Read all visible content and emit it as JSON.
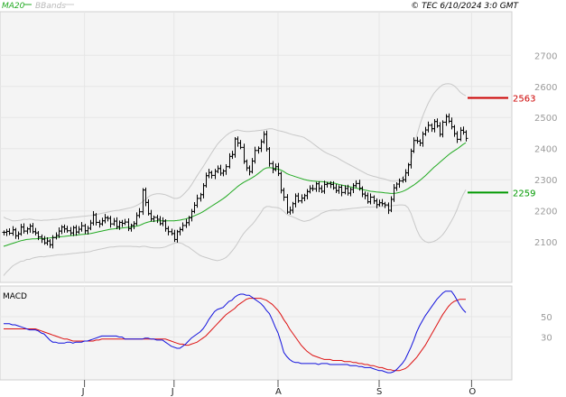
{
  "header": {
    "legend_ma": "MA20",
    "legend_bb": "BBands",
    "copyright": "© TEC 6/10/2024 3:0 GMT"
  },
  "macd_label": "MACD",
  "colors": {
    "ma": "#22aa22",
    "bands": "#c8c8c8",
    "bars": "#000000",
    "macd": "#1111dd",
    "signal": "#dd1111",
    "resistance": "#cc0000",
    "support": "#009900",
    "grid": "#e6e6e6",
    "panel_bg": "#f4f4f4"
  },
  "chart_data": [
    {
      "type": "ohlc",
      "title": "",
      "ylim": [
        1970,
        2840
      ],
      "yticks": [
        2100,
        2200,
        2300,
        2400,
        2500,
        2600,
        2700
      ],
      "x_tick_labels": [
        {
          "label": "J",
          "index": 28
        },
        {
          "label": "J",
          "index": 59
        },
        {
          "label": "A",
          "index": 95
        },
        {
          "label": "S",
          "index": 130
        },
        {
          "label": "O",
          "index": 162
        }
      ],
      "levels": [
        {
          "name": "resistance",
          "value": 2563,
          "label": "2563"
        },
        {
          "name": "support",
          "value": 2259,
          "label": "2259"
        }
      ],
      "close": [
        2131,
        2134,
        2128,
        2139,
        2120,
        2126,
        2148,
        2135,
        2142,
        2151,
        2133,
        2129,
        2116,
        2109,
        2097,
        2103,
        2091,
        2114,
        2121,
        2135,
        2148,
        2142,
        2136,
        2129,
        2146,
        2132,
        2141,
        2152,
        2136,
        2144,
        2161,
        2187,
        2163,
        2158,
        2168,
        2178,
        2176,
        2158,
        2167,
        2149,
        2163,
        2160,
        2164,
        2143,
        2153,
        2159,
        2185,
        2197,
        2267,
        2227,
        2191,
        2174,
        2179,
        2173,
        2159,
        2167,
        2143,
        2133,
        2127,
        2108,
        2133,
        2140,
        2153,
        2162,
        2178,
        2198,
        2218,
        2240,
        2252,
        2281,
        2313,
        2323,
        2314,
        2327,
        2336,
        2321,
        2328,
        2342,
        2375,
        2381,
        2431,
        2418,
        2404,
        2359,
        2338,
        2326,
        2360,
        2394,
        2401,
        2422,
        2446,
        2399,
        2352,
        2333,
        2342,
        2320,
        2266,
        2244,
        2196,
        2202,
        2223,
        2248,
        2232,
        2241,
        2249,
        2262,
        2272,
        2271,
        2287,
        2272,
        2263,
        2285,
        2287,
        2285,
        2274,
        2265,
        2276,
        2259,
        2272,
        2257,
        2269,
        2281,
        2288,
        2273,
        2254,
        2249,
        2229,
        2244,
        2232,
        2220,
        2226,
        2223,
        2219,
        2202,
        2237,
        2274,
        2286,
        2296,
        2300,
        2322,
        2348,
        2392,
        2426,
        2424,
        2418,
        2447,
        2460,
        2475,
        2464,
        2487,
        2473,
        2446,
        2485,
        2503,
        2488,
        2470,
        2448,
        2430,
        2459,
        2453,
        2433
      ],
      "ma20": [
        2086,
        2089,
        2092,
        2095,
        2098,
        2101,
        2104,
        2106,
        2108,
        2109,
        2110,
        2110,
        2111,
        2111,
        2111,
        2112,
        2113,
        2114,
        2115,
        2116,
        2117,
        2118,
        2119,
        2120,
        2121,
        2122,
        2123,
        2124,
        2125,
        2126,
        2127,
        2129,
        2131,
        2133,
        2135,
        2137,
        2139,
        2141,
        2142,
        2143,
        2144,
        2145,
        2146,
        2147,
        2148,
        2149,
        2151,
        2153,
        2157,
        2161,
        2164,
        2166,
        2167,
        2168,
        2168,
        2168,
        2168,
        2168,
        2168,
        2168,
        2169,
        2170,
        2172,
        2174,
        2177,
        2180,
        2184,
        2188,
        2192,
        2197,
        2203,
        2209,
        2215,
        2221,
        2227,
        2233,
        2239,
        2246,
        2254,
        2262,
        2270,
        2278,
        2285,
        2291,
        2296,
        2301,
        2306,
        2312,
        2319,
        2326,
        2334,
        2338,
        2339,
        2338,
        2336,
        2334,
        2331,
        2326,
        2320,
        2316,
        2313,
        2310,
        2307,
        2304,
        2301,
        2299,
        2297,
        2296,
        2295,
        2294,
        2294,
        2293,
        2292,
        2291,
        2290,
        2288,
        2285,
        2283,
        2281,
        2279,
        2277,
        2275,
        2273,
        2271,
        2269,
        2267,
        2265,
        2263,
        2262,
        2261,
        2260,
        2259,
        2258,
        2257,
        2256,
        2256,
        2257,
        2259,
        2262,
        2266,
        2271,
        2277,
        2283,
        2290,
        2297,
        2305,
        2313,
        2322,
        2331,
        2340,
        2348,
        2356,
        2364,
        2372,
        2380,
        2387,
        2393,
        2399,
        2406,
        2413,
        2419
      ],
      "bb_upper": [
        2180,
        2175,
        2172,
        2168,
        2168,
        2169,
        2170,
        2173,
        2172,
        2174,
        2172,
        2170,
        2170,
        2169,
        2170,
        2170,
        2171,
        2172,
        2172,
        2173,
        2175,
        2176,
        2177,
        2178,
        2179,
        2180,
        2181,
        2182,
        2183,
        2184,
        2185,
        2186,
        2188,
        2190,
        2192,
        2194,
        2196,
        2198,
        2200,
        2201,
        2202,
        2204,
        2206,
        2208,
        2210,
        2213,
        2217,
        2222,
        2228,
        2236,
        2244,
        2250,
        2253,
        2255,
        2255,
        2254,
        2252,
        2248,
        2244,
        2240,
        2240,
        2243,
        2250,
        2260,
        2270,
        2283,
        2298,
        2313,
        2327,
        2341,
        2356,
        2371,
        2386,
        2400,
        2414,
        2424,
        2433,
        2442,
        2449,
        2454,
        2458,
        2460,
        2458,
        2456,
        2455,
        2455,
        2456,
        2457,
        2458,
        2459,
        2460,
        2462,
        2464,
        2464,
        2461,
        2458,
        2456,
        2454,
        2451,
        2448,
        2445,
        2443,
        2441,
        2439,
        2436,
        2430,
        2424,
        2417,
        2410,
        2403,
        2396,
        2390,
        2385,
        2381,
        2377,
        2373,
        2368,
        2362,
        2357,
        2352,
        2347,
        2342,
        2337,
        2332,
        2327,
        2322,
        2317,
        2314,
        2311,
        2309,
        2306,
        2304,
        2302,
        2299,
        2296,
        2295,
        2296,
        2299,
        2305,
        2314,
        2332,
        2362,
        2400,
        2440,
        2474,
        2502,
        2525,
        2546,
        2563,
        2578,
        2589,
        2598,
        2605,
        2608,
        2609,
        2607,
        2602,
        2593,
        2582,
        2575,
        2570
      ],
      "bb_lower": [
        1992,
        2003,
        2012,
        2022,
        2028,
        2033,
        2038,
        2039,
        2044,
        2044,
        2048,
        2050,
        2052,
        2053,
        2052,
        2054,
        2055,
        2056,
        2058,
        2059,
        2059,
        2060,
        2061,
        2062,
        2063,
        2064,
        2065,
        2066,
        2067,
        2068,
        2069,
        2072,
        2074,
        2076,
        2078,
        2080,
        2082,
        2084,
        2084,
        2085,
        2086,
        2086,
        2086,
        2086,
        2086,
        2085,
        2085,
        2084,
        2086,
        2086,
        2084,
        2082,
        2081,
        2081,
        2081,
        2082,
        2084,
        2088,
        2092,
        2096,
        2098,
        2097,
        2094,
        2088,
        2084,
        2077,
        2070,
        2063,
        2057,
        2053,
        2050,
        2047,
        2044,
        2042,
        2040,
        2042,
        2045,
        2050,
        2059,
        2070,
        2082,
        2096,
        2112,
        2126,
        2137,
        2147,
        2156,
        2167,
        2180,
        2193,
        2208,
        2214,
        2214,
        2212,
        2211,
        2210,
        2206,
        2198,
        2189,
        2184,
        2181,
        2177,
        2173,
        2169,
        2166,
        2168,
        2170,
        2175,
        2180,
        2185,
        2192,
        2196,
        2199,
        2201,
        2203,
        2203,
        2202,
        2204,
        2205,
        2206,
        2207,
        2208,
        2209,
        2210,
        2211,
        2212,
        2213,
        2212,
        2213,
        2213,
        2214,
        2214,
        2214,
        2215,
        2216,
        2217,
        2218,
        2219,
        2219,
        2218,
        2210,
        2192,
        2166,
        2140,
        2120,
        2108,
        2101,
        2098,
        2099,
        2102,
        2107,
        2114,
        2123,
        2136,
        2151,
        2167,
        2184,
        2205,
        2230,
        2251,
        2268
      ]
    },
    {
      "type": "line",
      "title": "MACD",
      "ylim": [
        -12,
        80
      ],
      "yticks": [
        30,
        50
      ],
      "series": [
        {
          "name": "MACD",
          "values": [
            43,
            43,
            43,
            42,
            42,
            41,
            40,
            39,
            38,
            37,
            37,
            37,
            36,
            34,
            33,
            30,
            27,
            25,
            25,
            24,
            24,
            24,
            25,
            25,
            24,
            25,
            25,
            25,
            26,
            26,
            27,
            28,
            29,
            30,
            31,
            31,
            31,
            31,
            31,
            31,
            30,
            30,
            28,
            28,
            28,
            28,
            28,
            28,
            28,
            29,
            29,
            28,
            28,
            27,
            27,
            27,
            25,
            23,
            21,
            20,
            19,
            19,
            21,
            23,
            26,
            29,
            31,
            33,
            35,
            38,
            42,
            47,
            51,
            55,
            57,
            58,
            59,
            62,
            65,
            66,
            69,
            71,
            72,
            72,
            71,
            71,
            69,
            67,
            65,
            63,
            60,
            56,
            53,
            47,
            40,
            34,
            25,
            15,
            11,
            8,
            6,
            5,
            5,
            4,
            4,
            4,
            4,
            4,
            4,
            3,
            4,
            4,
            4,
            3,
            3,
            3,
            3,
            3,
            3,
            3,
            2,
            2,
            2,
            1,
            1,
            0,
            0,
            0,
            -1,
            -2,
            -3,
            -3,
            -4,
            -5,
            -5,
            -4,
            -2,
            1,
            4,
            8,
            14,
            20,
            27,
            35,
            41,
            46,
            51,
            55,
            59,
            63,
            67,
            70,
            73,
            75,
            75,
            75,
            71,
            66,
            61,
            57,
            54
          ]
        },
        {
          "name": "Signal",
          "values": [
            38,
            38,
            38,
            38,
            38,
            38,
            38,
            38,
            38,
            38,
            38,
            38,
            37,
            36,
            35,
            34,
            33,
            32,
            31,
            30,
            29,
            28,
            28,
            27,
            26,
            26,
            26,
            26,
            26,
            26,
            26,
            26,
            27,
            27,
            28,
            28,
            28,
            28,
            28,
            28,
            28,
            28,
            28,
            28,
            28,
            28,
            28,
            28,
            28,
            28,
            28,
            28,
            28,
            28,
            28,
            28,
            28,
            27,
            26,
            25,
            24,
            23,
            23,
            22,
            22,
            23,
            24,
            25,
            27,
            29,
            31,
            34,
            37,
            40,
            43,
            46,
            49,
            52,
            54,
            56,
            58,
            61,
            63,
            65,
            67,
            68,
            68,
            68,
            68,
            68,
            67,
            66,
            64,
            62,
            59,
            56,
            52,
            47,
            43,
            38,
            34,
            30,
            26,
            22,
            19,
            16,
            14,
            12,
            11,
            10,
            9,
            8,
            8,
            8,
            7,
            7,
            7,
            7,
            6,
            6,
            6,
            5,
            5,
            4,
            4,
            3,
            3,
            2,
            2,
            1,
            0,
            0,
            -1,
            -2,
            -2,
            -3,
            -3,
            -3,
            -2,
            -1,
            1,
            4,
            7,
            10,
            14,
            18,
            22,
            27,
            32,
            37,
            42,
            47,
            52,
            56,
            60,
            63,
            65,
            66,
            67,
            67,
            67
          ]
        }
      ]
    }
  ]
}
